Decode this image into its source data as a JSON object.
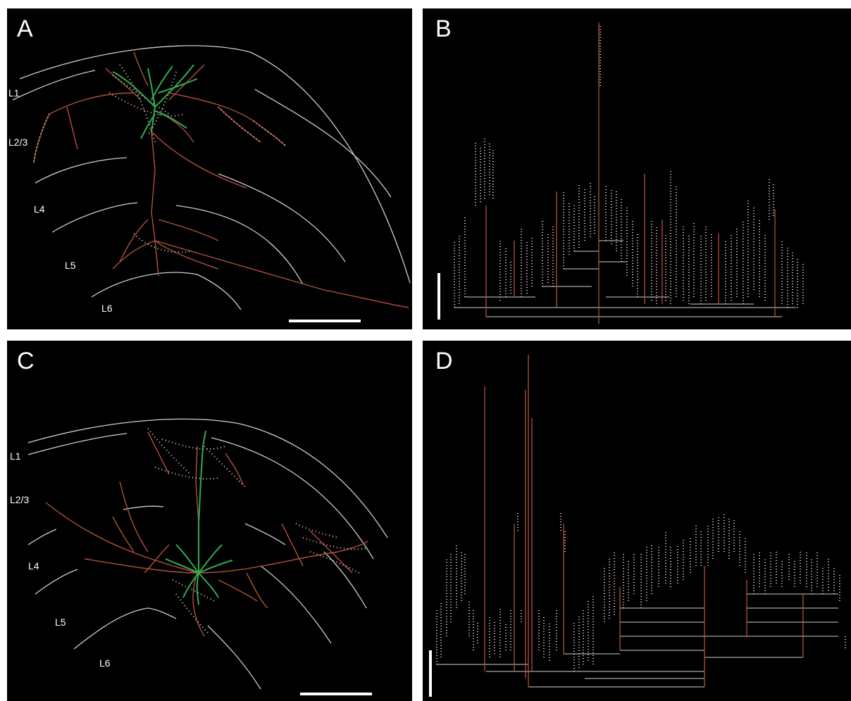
{
  "panels": {
    "A": {
      "letter": "A",
      "layers": [
        "L1",
        "L2/3",
        "L4",
        "L5",
        "L6"
      ]
    },
    "B": {
      "letter": "B"
    },
    "C": {
      "letter": "C",
      "layers": [
        "L1",
        "L2/3",
        "L4",
        "L5",
        "L6"
      ]
    },
    "D": {
      "letter": "D"
    }
  },
  "colors": {
    "background": "#000000",
    "axon": "#b0523e",
    "bouton": "#d9c9c4",
    "dendrite": "#2fae4f",
    "layer_boundary": "#cfcfcf",
    "scale_bar": "#ffffff"
  }
}
